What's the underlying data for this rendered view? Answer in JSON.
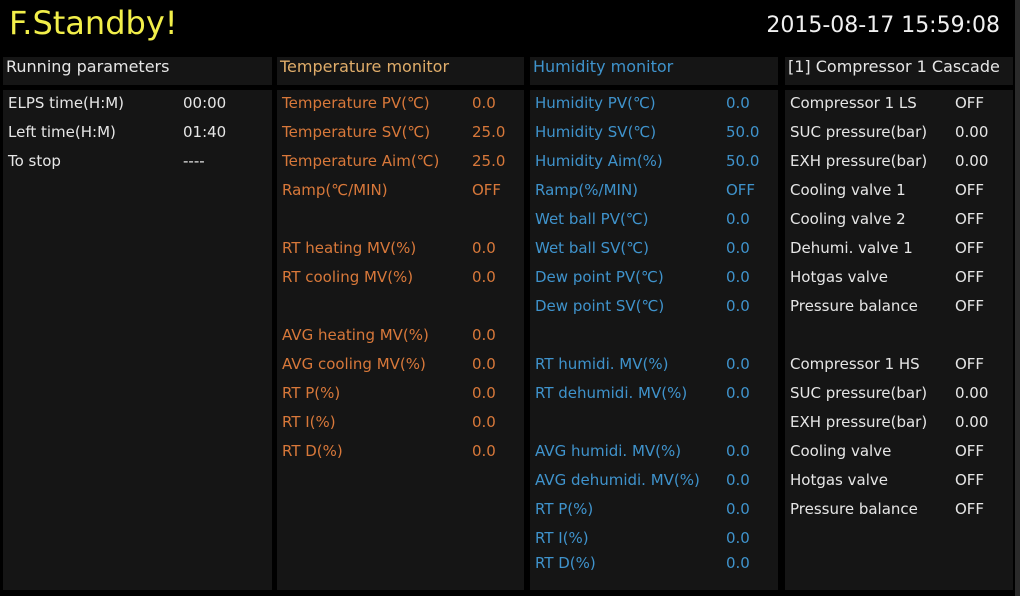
{
  "header": {
    "status": "F.Standby!",
    "datetime": "2015-08-17 15:59:08"
  },
  "colors": {
    "status": "#f2ef4a",
    "temperature": "#d8783a",
    "humidity": "#3f93cc",
    "panel": "#151515"
  },
  "panels": [
    {
      "title": "Running parameters",
      "color": "white",
      "rows": [
        {
          "label": "ELPS time(H:M)",
          "value": "00:00"
        },
        {
          "label": "Left time(H:M)",
          "value": "01:40"
        },
        {
          "label": "To stop",
          "value": "----"
        }
      ]
    },
    {
      "title": "Temperature monitor",
      "color": "orange",
      "rows": [
        {
          "label": "Temperature PV(℃)",
          "value": "0.0"
        },
        {
          "label": "Temperature SV(℃)",
          "value": "25.0"
        },
        {
          "label": "Temperature Aim(℃)",
          "value": "25.0"
        },
        {
          "label": "Ramp(℃/MIN)",
          "value": "OFF"
        },
        {
          "label": "RT heating MV(%)",
          "value": "0.0"
        },
        {
          "label": "RT cooling MV(%)",
          "value": "0.0"
        },
        {
          "label": "AVG heating MV(%)",
          "value": "0.0"
        },
        {
          "label": "AVG cooling MV(%)",
          "value": "0.0"
        },
        {
          "label": "RT P(%)",
          "value": "0.0"
        },
        {
          "label": "RT I(%)",
          "value": "0.0"
        },
        {
          "label": "RT D(%)",
          "value": "0.0"
        }
      ]
    },
    {
      "title": "Humidity monitor",
      "color": "blue",
      "rows": [
        {
          "label": "Humidity PV(℃)",
          "value": "0.0"
        },
        {
          "label": "Humidity SV(℃)",
          "value": "50.0"
        },
        {
          "label": "Humidity Aim(%)",
          "value": "50.0"
        },
        {
          "label": "Ramp(%/MIN)",
          "value": "OFF"
        },
        {
          "label": "Wet ball PV(℃)",
          "value": "0.0"
        },
        {
          "label": "Wet ball SV(℃)",
          "value": "0.0"
        },
        {
          "label": "Dew point PV(℃)",
          "value": "0.0"
        },
        {
          "label": "Dew point SV(℃)",
          "value": "0.0"
        },
        {
          "label": "RT humidi. MV(%)",
          "value": "0.0"
        },
        {
          "label": "RT dehumidi. MV(%)",
          "value": "0.0"
        },
        {
          "label": "AVG humidi. MV(%)",
          "value": "0.0"
        },
        {
          "label": "AVG dehumidi. MV(%)",
          "value": "0.0"
        },
        {
          "label": "RT P(%)",
          "value": "0.0"
        },
        {
          "label": "RT I(%)",
          "value": "0.0"
        },
        {
          "label": "RT D(%)",
          "value": "0.0"
        }
      ]
    },
    {
      "title": "[1] Compressor 1 Cascade",
      "color": "white",
      "rows": [
        {
          "label": "Compressor 1 LS",
          "value": "OFF"
        },
        {
          "label": "SUC pressure(bar)",
          "value": "0.00"
        },
        {
          "label": "EXH pressure(bar)",
          "value": "0.00"
        },
        {
          "label": "Cooling valve 1",
          "value": "OFF"
        },
        {
          "label": "Cooling valve 2",
          "value": "OFF"
        },
        {
          "label": "Dehumi. valve 1",
          "value": "OFF"
        },
        {
          "label": "Hotgas valve",
          "value": "OFF"
        },
        {
          "label": "Pressure balance",
          "value": "OFF"
        },
        {
          "label": "Compressor 1 HS",
          "value": "OFF"
        },
        {
          "label": "SUC pressure(bar)",
          "value": "0.00"
        },
        {
          "label": "EXH pressure(bar)",
          "value": "0.00"
        },
        {
          "label": "Cooling valve",
          "value": "OFF"
        },
        {
          "label": "Hotgas valve",
          "value": "OFF"
        },
        {
          "label": "Pressure balance",
          "value": "OFF"
        }
      ]
    }
  ]
}
